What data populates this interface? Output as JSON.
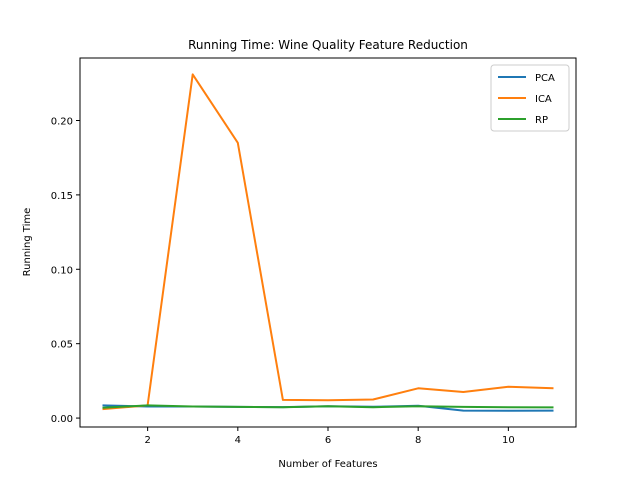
{
  "chart_data": {
    "type": "line",
    "title": "Running Time: Wine Quality Feature Reduction",
    "xlabel": "Number of Features",
    "ylabel": "Running Time",
    "xlim": [
      0.5,
      11.5
    ],
    "ylim": [
      -0.006,
      0.242
    ],
    "xticks": [
      2,
      4,
      6,
      8,
      10
    ],
    "xtick_labels": [
      "2",
      "4",
      "6",
      "8",
      "10"
    ],
    "yticks": [
      0.0,
      0.05,
      0.1,
      0.15,
      0.2
    ],
    "ytick_labels": [
      "0.00",
      "0.05",
      "0.10",
      "0.15",
      "0.20"
    ],
    "grid": false,
    "legend_position": "top-right",
    "x": [
      1,
      2,
      3,
      4,
      5,
      6,
      7,
      8,
      9,
      10,
      11
    ],
    "series": [
      {
        "name": "PCA",
        "color": "#1f77b4",
        "values": [
          0.0085,
          0.0078,
          0.0078,
          0.0075,
          0.0074,
          0.0079,
          0.0076,
          0.0083,
          0.005,
          0.0049,
          0.005
        ]
      },
      {
        "name": "ICA",
        "color": "#ff7f0e",
        "values": [
          0.006,
          0.0085,
          0.231,
          0.185,
          0.0122,
          0.012,
          0.0125,
          0.02,
          0.0175,
          0.021,
          0.02
        ]
      },
      {
        "name": "RP",
        "color": "#2ca02c",
        "values": [
          0.007,
          0.0085,
          0.0078,
          0.0075,
          0.0073,
          0.008,
          0.0073,
          0.008,
          0.0075,
          0.0073,
          0.0072
        ]
      }
    ]
  }
}
